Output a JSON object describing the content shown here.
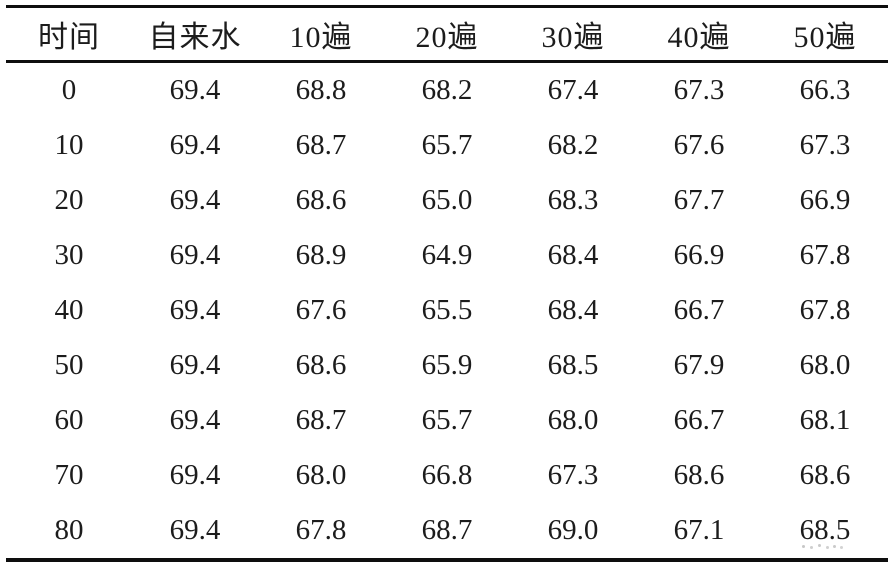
{
  "chart_data": {
    "type": "table",
    "title": "",
    "columns": [
      "时间",
      "自来水",
      "10遍",
      "20遍",
      "30遍",
      "40遍",
      "50遍"
    ],
    "rows": [
      [
        "0",
        "69.4",
        "68.8",
        "68.2",
        "67.4",
        "67.3",
        "66.3"
      ],
      [
        "10",
        "69.4",
        "68.7",
        "65.7",
        "68.2",
        "67.6",
        "67.3"
      ],
      [
        "20",
        "69.4",
        "68.6",
        "65.0",
        "68.3",
        "67.7",
        "66.9"
      ],
      [
        "30",
        "69.4",
        "68.9",
        "64.9",
        "68.4",
        "66.9",
        "67.8"
      ],
      [
        "40",
        "69.4",
        "67.6",
        "65.5",
        "68.4",
        "66.7",
        "67.8"
      ],
      [
        "50",
        "69.4",
        "68.6",
        "65.9",
        "68.5",
        "67.9",
        "68.0"
      ],
      [
        "60",
        "69.4",
        "68.7",
        "65.7",
        "68.0",
        "66.7",
        "68.1"
      ],
      [
        "70",
        "69.4",
        "68.0",
        "66.8",
        "67.3",
        "68.6",
        "68.6"
      ],
      [
        "80",
        "69.4",
        "67.8",
        "68.7",
        "69.0",
        "67.1",
        "68.5"
      ]
    ]
  },
  "colors": {
    "text": "#1c1c1c",
    "rule": "#0e0e0e",
    "background": "#ffffff"
  }
}
